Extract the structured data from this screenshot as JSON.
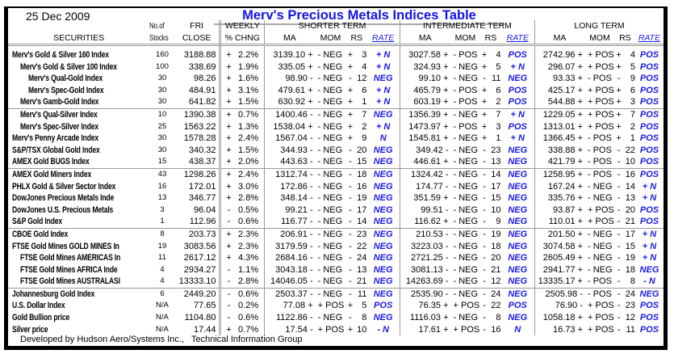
{
  "date": "25 Dec 2009",
  "title": "Merv's Precious Metals Indices Table",
  "colors": {
    "rate": "#1a1ae6",
    "title": "#1414e6",
    "grid": "#999999"
  },
  "headers": {
    "securities": "SECURITIES",
    "stocks_1": "No.of",
    "stocks_2": "Stocks",
    "close_1": "FRI",
    "close_2": "CLOSE",
    "weekly_1": "WEEKLY",
    "weekly_2": "% CHNG",
    "shorter": "SHORTER TERM",
    "intermediate": "INTERMEDIATE TERM",
    "long": "LONG TERM",
    "ma": "MA",
    "mom": "MOM",
    "rs": "RS",
    "rate": "RATE"
  },
  "rows": [
    {
      "name": "Merv's Gold & Silver 160 Index",
      "indent": 0,
      "stocks": "160",
      "close": "3188.88",
      "wk": "+",
      "pct": "2.2%",
      "s": [
        "3139.10 +",
        "- NEG",
        "+",
        "3",
        "+ N"
      ],
      "i": [
        "3027.58 +",
        "- POS",
        "+",
        "4",
        "POS"
      ],
      "l": [
        "2742.96 +",
        "+ POS",
        "+",
        "4",
        "POS"
      ]
    },
    {
      "name": "Merv's Gold & Silver 100 Index",
      "indent": 1,
      "stocks": "100",
      "close": "338.69",
      "wk": "+",
      "pct": "1.9%",
      "s": [
        "335.05 +",
        "- NEG",
        "+",
        "4",
        "+ N"
      ],
      "i": [
        "324.93 +",
        "- NEG",
        "+",
        "5",
        "+ N"
      ],
      "l": [
        "296.07 +",
        "+ POS",
        "+",
        "5",
        "POS"
      ]
    },
    {
      "name": "Merv's Qual-Gold Index",
      "indent": 2,
      "stocks": "30",
      "close": "98.26",
      "wk": "+",
      "pct": "1.6%",
      "s": [
        "98.90 -",
        "- NEG",
        "-",
        "12",
        "NEG"
      ],
      "i": [
        "99.10 +",
        "- NEG",
        "-",
        "11",
        "NEG"
      ],
      "l": [
        "93.33 +",
        "- POS",
        "-",
        "9",
        "POS"
      ]
    },
    {
      "name": "Merv's Spec-Gold Index",
      "indent": 2,
      "stocks": "30",
      "close": "484.91",
      "wk": "+",
      "pct": "3.1%",
      "s": [
        "479.61 +",
        "- NEG",
        "+",
        "6",
        "+ N"
      ],
      "i": [
        "465.79 +",
        "- POS",
        "+",
        "6",
        "POS"
      ],
      "l": [
        "425.17 +",
        "+ POS",
        "+",
        "6",
        "POS"
      ]
    },
    {
      "name": "Merv's Gamb-Gold Index",
      "indent": 1,
      "stocks": "30",
      "close": "641.82",
      "wk": "+",
      "pct": "1.5%",
      "s": [
        "630.92 +",
        "- NEG",
        "+",
        "1",
        "+ N"
      ],
      "i": [
        "603.19 +",
        "- POS",
        "+",
        "2",
        "POS"
      ],
      "l": [
        "544.88 +",
        "+ POS",
        "+",
        "3",
        "POS"
      ]
    },
    {
      "name": "Merv's Qual-Silver Index",
      "indent": 1,
      "sep": true,
      "stocks": "10",
      "close": "1390.38",
      "wk": "+",
      "pct": "0.7%",
      "s": [
        "1400.46 -",
        "- NEG",
        "+",
        "7",
        "NEG"
      ],
      "i": [
        "1356.39 +",
        "- NEG",
        "+",
        "7",
        "+ N"
      ],
      "l": [
        "1229.05 +",
        "+ POS",
        "+",
        "7",
        "POS"
      ]
    },
    {
      "name": "Merv's Spec-Silver Index",
      "indent": 1,
      "stocks": "25",
      "close": "1563.22",
      "wk": "+",
      "pct": "1.3%",
      "s": [
        "1538.04 +",
        "- NEG",
        "+",
        "2",
        "+ N"
      ],
      "i": [
        "1473.97 +",
        "- POS",
        "+",
        "3",
        "POS"
      ],
      "l": [
        "1313.01 +",
        "+ POS",
        "+",
        "2",
        "POS"
      ]
    },
    {
      "name": "Merv's Penny Arcade Index",
      "indent": 0,
      "stocks": "30",
      "close": "1578.28",
      "wk": "+",
      "pct": "2.4%",
      "s": [
        "1567.04 -",
        "- NEG",
        "+",
        "9",
        "N"
      ],
      "i": [
        "1545.81 +",
        "- NEG",
        "+",
        "1",
        "+ N"
      ],
      "l": [
        "1366.45 +",
        "- POS",
        "+",
        "1",
        "POS"
      ]
    },
    {
      "name": "S&P/TSX Global Gold Index",
      "indent": 0,
      "stocks": "30",
      "close": "340.32",
      "wk": "+",
      "pct": "1.5%",
      "s": [
        "344.93 -",
        "- NEG",
        "-",
        "20",
        "NEG"
      ],
      "i": [
        "349.42 -",
        "- NEG",
        "-",
        "23",
        "NEG"
      ],
      "l": [
        "338.88 +",
        "- POS",
        "-",
        "22",
        "POS"
      ]
    },
    {
      "name": "AMEX Gold BUGS Index",
      "indent": 0,
      "stocks": "15",
      "close": "438.37",
      "wk": "+",
      "pct": "2.0%",
      "s": [
        "443.63 -",
        "- NEG",
        "-",
        "15",
        "NEG"
      ],
      "i": [
        "446.61 +",
        "- NEG",
        "-",
        "13",
        "NEG"
      ],
      "l": [
        "421.79 +",
        "- POS",
        "-",
        "10",
        "POS"
      ]
    },
    {
      "name": "AMEX Gold Miners Index",
      "indent": 0,
      "sep": true,
      "stocks": "43",
      "close": "1298.26",
      "wk": "+",
      "pct": "2.4%",
      "s": [
        "1312.74 -",
        "- NEG",
        "-",
        "18",
        "NEG"
      ],
      "i": [
        "1324.42 -",
        "- NEG",
        "-",
        "14",
        "NEG"
      ],
      "l": [
        "1258.95 +",
        "- POS",
        "-",
        "16",
        "POS"
      ]
    },
    {
      "name": "PHLX Gold & Silver Sector Index",
      "indent": 0,
      "stocks": "16",
      "close": "172.01",
      "wk": "+",
      "pct": "3.0%",
      "s": [
        "172.86 -",
        "- NEG",
        "-",
        "16",
        "NEG"
      ],
      "i": [
        "174.77 -",
        "- NEG",
        "-",
        "17",
        "NEG"
      ],
      "l": [
        "167.24 +",
        "- NEG",
        "-",
        "14",
        "+ N"
      ]
    },
    {
      "name": "DowJones Precious Metals Inde",
      "indent": 0,
      "stocks": "13",
      "close": "346.77",
      "wk": "+",
      "pct": "2.8%",
      "s": [
        "348.14 -",
        "- NEG",
        "-",
        "19",
        "NEG"
      ],
      "i": [
        "351.59 +",
        "- NEG",
        "-",
        "15",
        "NEG"
      ],
      "l": [
        "335.76 +",
        "- NEG",
        "-",
        "13",
        "+ N"
      ]
    },
    {
      "name": "DowJones U.S. Precious Metals",
      "indent": 0,
      "stocks": "3",
      "close": "96.04",
      "wk": "-",
      "pct": "0.5%",
      "s": [
        "99.21 -",
        "- NEG",
        "-",
        "17",
        "NEG"
      ],
      "i": [
        "99.51 -",
        "- NEG",
        "-",
        "10",
        "NEG"
      ],
      "l": [
        "93.87 +",
        "+ POS",
        "-",
        "20",
        "POS"
      ]
    },
    {
      "name": "S&P Gold Index",
      "indent": 0,
      "stocks": "1",
      "close": "112.96",
      "wk": "-",
      "pct": "0.6%",
      "s": [
        "116.77 -",
        "- NEG",
        "-",
        "14",
        "NEG"
      ],
      "i": [
        "116.62 +",
        "- NEG",
        "-",
        "9",
        "NEG"
      ],
      "l": [
        "110.01 +",
        "+ POS",
        "-",
        "21",
        "POS"
      ]
    },
    {
      "name": "CBOE Gold Index",
      "indent": 0,
      "sep": true,
      "stocks": "8",
      "close": "203.73",
      "wk": "+",
      "pct": "2.3%",
      "s": [
        "206.91 -",
        "- NEG",
        "-",
        "23",
        "NEG"
      ],
      "i": [
        "210.53 -",
        "- NEG",
        "-",
        "19",
        "NEG"
      ],
      "l": [
        "201.50 +",
        "- NEG",
        "-",
        "17",
        "+ N"
      ]
    },
    {
      "name": "FTSE Gold Mines GOLD MINES In",
      "indent": 0,
      "stocks": "19",
      "close": "3083.56",
      "wk": "+",
      "pct": "2.3%",
      "s": [
        "3179.59 -",
        "- NEG",
        "-",
        "22",
        "NEG"
      ],
      "i": [
        "3223.03 -",
        "- NEG",
        "-",
        "18",
        "NEG"
      ],
      "l": [
        "3074.58 +",
        "- NEG",
        "-",
        "15",
        "+ N"
      ]
    },
    {
      "name": "FTSE Gold Mines AMERICAS In",
      "indent": 1,
      "stocks": "11",
      "close": "2617.12",
      "wk": "+",
      "pct": "4.3%",
      "s": [
        "2684.16 -",
        "- NEG",
        "-",
        "24",
        "NEG"
      ],
      "i": [
        "2721.25 -",
        "- NEG",
        "-",
        "20",
        "NEG"
      ],
      "l": [
        "2605.49 +",
        "- NEG",
        "-",
        "19",
        "+ N"
      ]
    },
    {
      "name": "FTSE Gold Mines AFRICA Inde",
      "indent": 1,
      "stocks": "4",
      "close": "2934.27",
      "wk": "-",
      "pct": "1.1%",
      "s": [
        "3043.18 -",
        "- NEG",
        "-",
        "13",
        "NEG"
      ],
      "i": [
        "3081.13 -",
        "- NEG",
        "-",
        "21",
        "NEG"
      ],
      "l": [
        "2941.77 +",
        "- NEG",
        "-",
        "18",
        "NEG"
      ]
    },
    {
      "name": "FTSE Gold Mines AUSTRALASI",
      "indent": 1,
      "stocks": "4",
      "close": "13333.10",
      "wk": "-",
      "pct": "2.8%",
      "s": [
        "14046.05 -",
        "- NEG",
        "-",
        "21",
        "NEG"
      ],
      "i": [
        "14263.69 -",
        "- NEG",
        "-",
        "12",
        "NEG"
      ],
      "l": [
        "13335.17 +",
        "- POS",
        "-",
        "8",
        "- N"
      ]
    },
    {
      "name": "Johannesburg Gold Index",
      "indent": 0,
      "sep": true,
      "stocks": "6",
      "close": "2449.20",
      "wk": "-",
      "pct": "0.6%",
      "s": [
        "2503.37 -",
        "- NEG",
        "-",
        "11",
        "NEG"
      ],
      "i": [
        "2535.90 -",
        "- NEG",
        "-",
        "24",
        "NEG"
      ],
      "l": [
        "2505.98 -",
        "- POS",
        "-",
        "24",
        "NEG"
      ]
    },
    {
      "name": "U.S. Dollar Index",
      "indent": 0,
      "stocks": "N/A",
      "close": "77.65",
      "wk": "-",
      "pct": "0.2%",
      "s": [
        "77.08 +",
        "+ POS",
        "+",
        "5",
        "POS"
      ],
      "i": [
        "76.35 +",
        "+ POS",
        "-",
        "22",
        "POS"
      ],
      "l": [
        "76.90 -",
        "+ POS",
        "-",
        "23",
        "POS"
      ]
    },
    {
      "name": "Gold Bullion price",
      "indent": 0,
      "stocks": "N/A",
      "close": "1104.80",
      "wk": "-",
      "pct": "0.6%",
      "s": [
        "1122.86 -",
        "- NEG",
        "-",
        "8",
        "NEG"
      ],
      "i": [
        "1116.03 +",
        "- NEG",
        "-",
        "8",
        "NEG"
      ],
      "l": [
        "1058.18 +",
        "+ POS",
        "-",
        "12",
        "POS"
      ]
    },
    {
      "name": "Silver price",
      "indent": 0,
      "stocks": "N/A",
      "close": "17.44",
      "wk": "+",
      "pct": "0.7%",
      "s": [
        "17.54 -",
        "+ POS",
        "+",
        "10",
        "- N"
      ],
      "i": [
        "17.61 +",
        "+ POS",
        "-",
        "16",
        "N"
      ],
      "l": [
        "16.73 +",
        "+ POS",
        "-",
        "11",
        "POS"
      ]
    }
  ],
  "footer": "Developed by Hudson Aero/Systems Inc.,   Technical Information Group"
}
